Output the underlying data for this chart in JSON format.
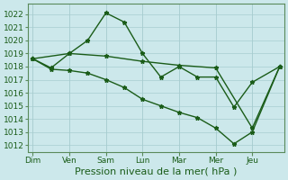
{
  "xlabel": "Pression niveau de la mer( hPa )",
  "xlabel_fontsize": 8,
  "days": [
    "Dim",
    "Ven",
    "Sam",
    "Lun",
    "Mar",
    "Mer",
    "Jeu"
  ],
  "day_positions": [
    0,
    4,
    8,
    12,
    16,
    20,
    24
  ],
  "ylim": [
    1011.5,
    1022.8
  ],
  "background_color": "#cce8eb",
  "grid_color": "#a8cdd0",
  "line_color": "#1a5c18",
  "line1_x": [
    0,
    4,
    8,
    12,
    16,
    20,
    24,
    27
  ],
  "line1_y": [
    1018.6,
    1019.0,
    1018.8,
    1018.4,
    1018.1,
    1017.9,
    1013.3,
    1018.0
  ],
  "line2_x": [
    0,
    2,
    4,
    6,
    8,
    10,
    12,
    14,
    16,
    18,
    20,
    22,
    24,
    27
  ],
  "line2_y": [
    1018.6,
    1017.9,
    1019.0,
    1020.0,
    1022.1,
    1021.4,
    1019.0,
    1017.2,
    1018.0,
    1017.2,
    1017.2,
    1014.9,
    1016.8,
    1018.0
  ],
  "line3_x": [
    0,
    2,
    4,
    6,
    8,
    10,
    12,
    14,
    16,
    18,
    20,
    22,
    24,
    27
  ],
  "line3_y": [
    1018.6,
    1017.8,
    1017.7,
    1017.5,
    1017.0,
    1016.4,
    1015.5,
    1015.0,
    1014.5,
    1014.1,
    1013.3,
    1012.1,
    1013.0,
    1018.0
  ],
  "xlim": [
    -0.5,
    27.5
  ],
  "figsize": [
    3.2,
    2.0
  ],
  "dpi": 100
}
